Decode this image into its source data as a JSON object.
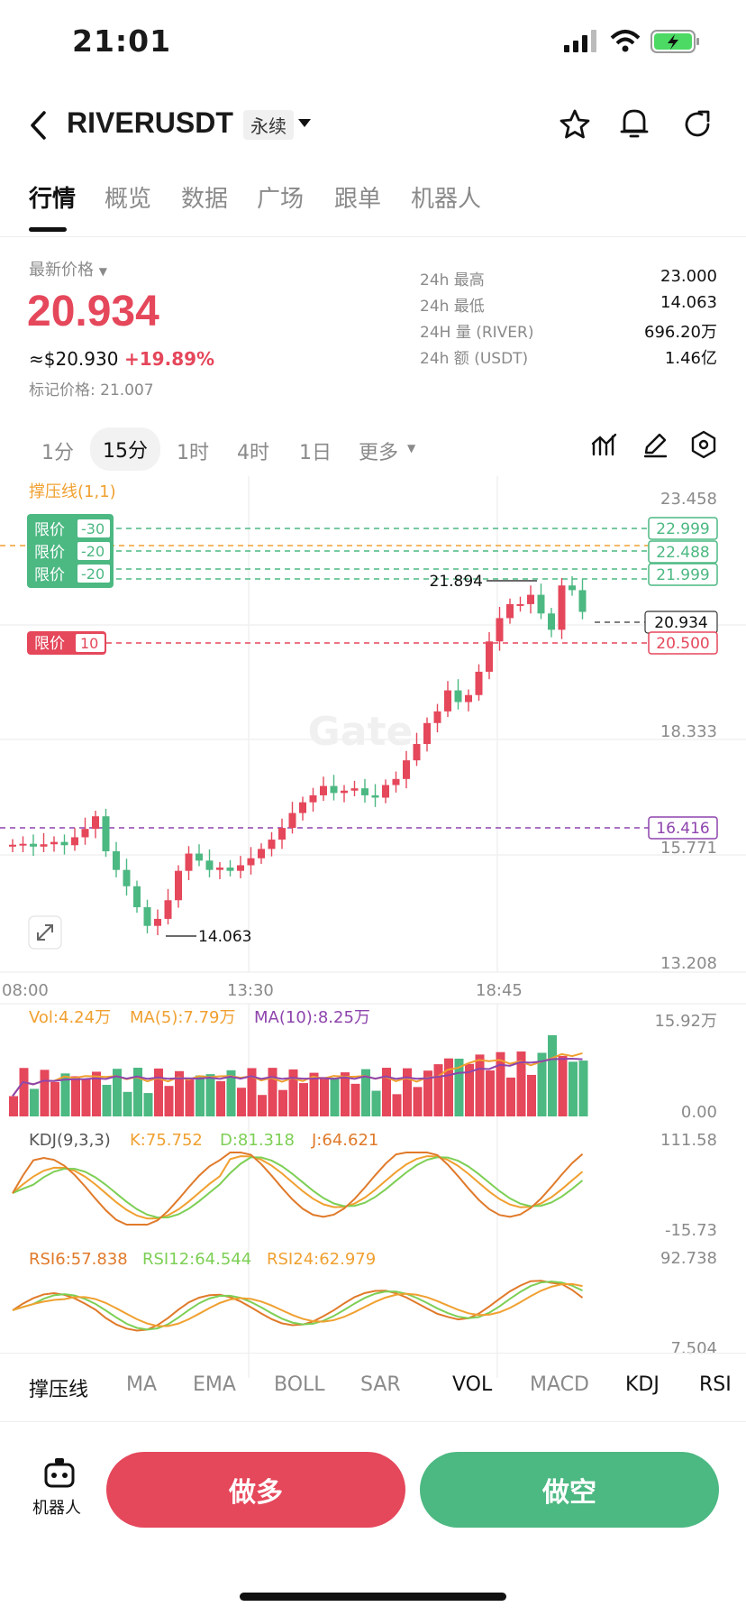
{
  "status": {
    "time": "21:01"
  },
  "header": {
    "pair": "RIVERUSDT",
    "contract": "永续"
  },
  "tabs": [
    "行情",
    "概览",
    "数据",
    "广场",
    "跟单",
    "机器人"
  ],
  "price": {
    "label": "最新价格",
    "last": "20.934",
    "usd": "≈$20.930",
    "change": "+19.89%",
    "mark": "标记价格: 21.007"
  },
  "stats": [
    {
      "k": "24h  最高",
      "v": "23.000"
    },
    {
      "k": "24h  最低",
      "v": "14.063"
    },
    {
      "k": "24H  量 (RIVER)",
      "v": "696.20万"
    },
    {
      "k": "24h  额 (USDT)",
      "v": "1.46亿"
    }
  ],
  "intervals": [
    "1分",
    "15分",
    "1时",
    "4时",
    "1日",
    "更多"
  ],
  "chart": {
    "indicator_label": "撑压线(1,1)",
    "y_ticks": [
      "23.458",
      "18.333",
      "15.771",
      "13.208"
    ],
    "x_ticks": [
      "08:00",
      "13:30",
      "18:45"
    ],
    "orders": [
      {
        "text": "限价",
        "qty": "-30",
        "price": "22.999"
      },
      {
        "text": "限价",
        "qty": "-20",
        "price": "22.488"
      },
      {
        "text": "限价",
        "qty": "-20",
        "price": "21.999"
      }
    ],
    "buy_order": {
      "text": "限价",
      "qty": "10",
      "price": "20.500"
    },
    "last_price_tag": "20.934",
    "support_tag": "16.416",
    "high_label": "21.894",
    "low_label": "14.063",
    "watermark": "Gate"
  },
  "volume": {
    "vol": "Vol:4.24万",
    "ma5": "MA(5):7.79万",
    "ma10": "MA(10):8.25万",
    "top": "15.92万",
    "bottom": "0.00"
  },
  "kdj": {
    "label": "KDJ(9,3,3)",
    "k": "K:75.752",
    "d": "D:81.318",
    "j": "J:64.621",
    "top": "111.58",
    "bottom": "-15.73"
  },
  "rsi": {
    "r6": "RSI6:57.838",
    "r12": "RSI12:64.544",
    "r24": "RSI24:62.979",
    "top": "92.738",
    "bottom": "7.504"
  },
  "indicator_tabs": [
    "撑压线",
    "MA",
    "EMA",
    "BOLL",
    "SAR",
    "VOL",
    "MACD",
    "KDJ",
    "RSI"
  ],
  "actions": {
    "robot": "机器人",
    "long": "做多",
    "short": "做空"
  },
  "colors": {
    "red": "#e5475b",
    "green": "#4cb882",
    "purple": "#8e44ad",
    "orange": "#f0a030"
  }
}
